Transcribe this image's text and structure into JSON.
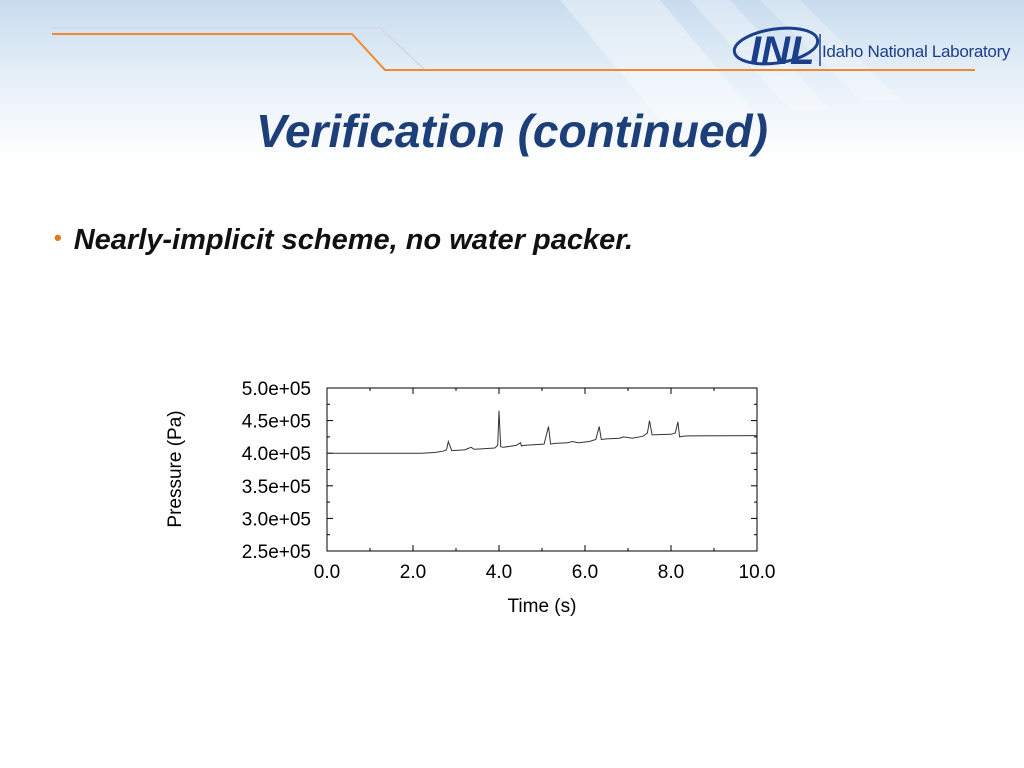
{
  "header": {
    "logo_mark": "INL",
    "logo_text": "Idaho National Laboratory",
    "colors": {
      "accent_line": "#f08a2c",
      "title": "#1c3f7a",
      "logo": "#1c3f8c"
    }
  },
  "slide": {
    "title": "Verification (continued)",
    "bullets": [
      {
        "text": "Nearly-implicit scheme, no water packer."
      }
    ],
    "bullet_color": "#e07a1f"
  },
  "chart_data": {
    "type": "line",
    "title": "",
    "xlabel": "Time (s)",
    "ylabel": "Pressure (Pa)",
    "xlim": [
      0,
      10
    ],
    "ylim": [
      250000,
      500000
    ],
    "x_ticks": [
      0,
      2,
      4,
      6,
      8,
      10
    ],
    "x_tick_labels": [
      "0.0",
      "2.0",
      "4.0",
      "6.0",
      "8.0",
      "10.0"
    ],
    "y_ticks": [
      250000,
      300000,
      350000,
      400000,
      450000,
      500000
    ],
    "y_tick_labels": [
      "2.5e+05",
      "3.0e+05",
      "3.5e+05",
      "4.0e+05",
      "4.5e+05",
      "5.0e+05"
    ],
    "grid": false,
    "line_color": "#333333",
    "series": [
      {
        "x": [
          0,
          2.2,
          2.5,
          2.7,
          2.78,
          2.82,
          2.9,
          3.2,
          3.35,
          3.42,
          3.55,
          3.9,
          3.97,
          4.0,
          4.04,
          4.1,
          4.3,
          4.4,
          4.5,
          4.52,
          4.58,
          4.8,
          5.05,
          5.15,
          5.2,
          5.3,
          5.6,
          5.7,
          5.85,
          6.1,
          6.25,
          6.33,
          6.38,
          6.5,
          6.8,
          6.9,
          7.1,
          7.35,
          7.45,
          7.5,
          7.56,
          7.7,
          8.0,
          8.1,
          8.16,
          8.2,
          8.28,
          8.4,
          10
        ],
        "y": [
          400000,
          400000,
          401000,
          403000,
          405000,
          418000,
          404000,
          405000,
          409000,
          406000,
          406500,
          408000,
          412000,
          465000,
          410000,
          409000,
          411000,
          412000,
          416000,
          411000,
          412000,
          413000,
          414000,
          441000,
          414000,
          415000,
          416000,
          418000,
          416000,
          418000,
          421000,
          441000,
          421000,
          422000,
          423000,
          425000,
          423000,
          426000,
          431000,
          450000,
          428000,
          428500,
          429000,
          431000,
          448000,
          425000,
          426000,
          426500,
          427000
        ]
      }
    ]
  }
}
